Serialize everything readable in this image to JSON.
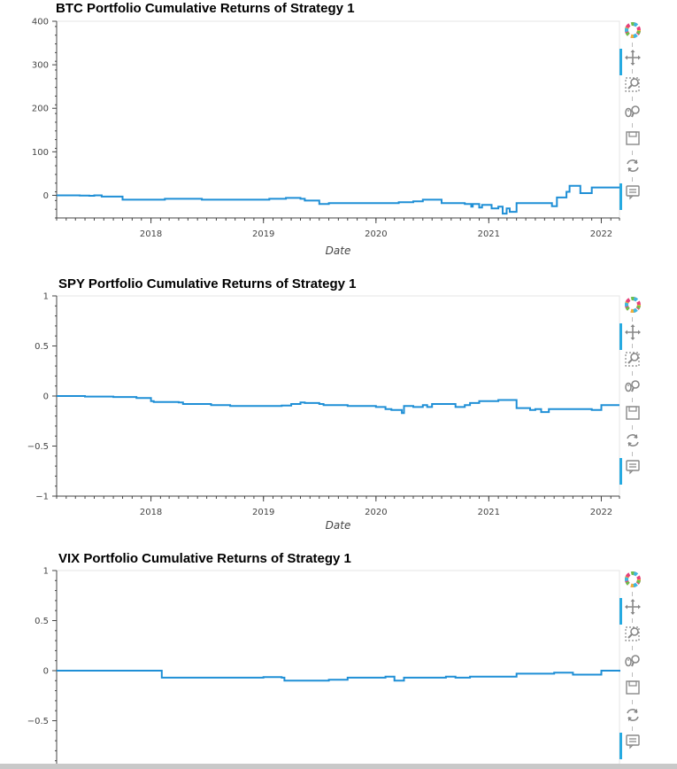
{
  "chart_data": [
    {
      "type": "line",
      "title": "BTC Portfolio Cumulative Returns of Strategy 1",
      "xlabel": "Date",
      "ylabel": "",
      "xlim": [
        "2017-03-01",
        "2022-03-01"
      ],
      "ylim": [
        -52,
        400
      ],
      "yticks": [
        0,
        100,
        200,
        300,
        400
      ],
      "ytick_labels": [
        "0",
        "100",
        "200",
        "300",
        "400"
      ],
      "xticks": [
        "2018-01-01",
        "2019-01-01",
        "2020-01-01",
        "2021-01-01",
        "2022-01-01"
      ],
      "xtick_labels": [
        "2018",
        "2019",
        "2020",
        "2021",
        "2022"
      ],
      "grid": false,
      "series": [
        {
          "color": "#1f8fd6",
          "points": [
            [
              "2017-03-01",
              0
            ],
            [
              "2017-05-15",
              -0.5
            ],
            [
              "2017-06-15",
              -1
            ],
            [
              "2017-07-01",
              0
            ],
            [
              "2017-07-25",
              -3
            ],
            [
              "2017-09-15",
              -3
            ],
            [
              "2017-10-01",
              -10
            ],
            [
              "2018-02-01",
              -10
            ],
            [
              "2018-02-15",
              -8
            ],
            [
              "2018-06-01",
              -8
            ],
            [
              "2018-06-15",
              -10
            ],
            [
              "2019-01-15",
              -10
            ],
            [
              "2019-01-20",
              -8
            ],
            [
              "2019-03-10",
              -8
            ],
            [
              "2019-03-15",
              -6
            ],
            [
              "2019-05-01",
              -8
            ],
            [
              "2019-05-15",
              -12
            ],
            [
              "2019-07-01",
              -20
            ],
            [
              "2019-08-01",
              -18
            ],
            [
              "2020-01-01",
              -18
            ],
            [
              "2020-03-15",
              -16
            ],
            [
              "2020-05-01",
              -14
            ],
            [
              "2020-06-01",
              -10
            ],
            [
              "2020-07-15",
              -10
            ],
            [
              "2020-08-01",
              -18
            ],
            [
              "2020-10-15",
              -20
            ],
            [
              "2020-11-05",
              -26
            ],
            [
              "2020-11-10",
              -20
            ],
            [
              "2020-12-01",
              -28
            ],
            [
              "2020-12-10",
              -22
            ],
            [
              "2021-01-10",
              -30
            ],
            [
              "2021-02-01",
              -26
            ],
            [
              "2021-02-15",
              -42
            ],
            [
              "2021-02-28",
              -30
            ],
            [
              "2021-03-10",
              -38
            ],
            [
              "2021-04-01",
              -18
            ],
            [
              "2021-07-20",
              -18
            ],
            [
              "2021-07-25",
              -25
            ],
            [
              "2021-08-10",
              -5
            ],
            [
              "2021-09-01",
              -5
            ],
            [
              "2021-09-10",
              8
            ],
            [
              "2021-09-20",
              22
            ],
            [
              "2021-10-20",
              22
            ],
            [
              "2021-10-25",
              5
            ],
            [
              "2021-11-15",
              5
            ],
            [
              "2021-12-01",
              18
            ],
            [
              "2022-03-01",
              18
            ]
          ]
        }
      ]
    },
    {
      "type": "line",
      "title": "SPY Portfolio Cumulative Returns of Strategy 1",
      "xlabel": "Date",
      "ylabel": "",
      "xlim": [
        "2017-03-01",
        "2022-03-01"
      ],
      "ylim": [
        -1,
        1
      ],
      "yticks": [
        -1,
        -0.5,
        0,
        0.5,
        1
      ],
      "ytick_labels": [
        "−1",
        "−0.5",
        "0",
        "0.5",
        "1"
      ],
      "xticks": [
        "2018-01-01",
        "2019-01-01",
        "2020-01-01",
        "2021-01-01",
        "2022-01-01"
      ],
      "xtick_labels": [
        "2018",
        "2019",
        "2020",
        "2021",
        "2022"
      ],
      "grid": false,
      "series": [
        {
          "color": "#1f8fd6",
          "points": [
            [
              "2017-03-01",
              0
            ],
            [
              "2017-06-01",
              -0.005
            ],
            [
              "2017-09-01",
              -0.01
            ],
            [
              "2017-11-15",
              -0.02
            ],
            [
              "2018-01-01",
              -0.05
            ],
            [
              "2018-01-10",
              -0.06
            ],
            [
              "2018-04-01",
              -0.065
            ],
            [
              "2018-04-15",
              -0.08
            ],
            [
              "2018-07-01",
              -0.08
            ],
            [
              "2018-07-15",
              -0.09
            ],
            [
              "2018-09-15",
              -0.1
            ],
            [
              "2019-02-15",
              -0.1
            ],
            [
              "2019-03-01",
              -0.095
            ],
            [
              "2019-04-01",
              -0.08
            ],
            [
              "2019-05-01",
              -0.065
            ],
            [
              "2019-05-15",
              -0.07
            ],
            [
              "2019-07-01",
              -0.08
            ],
            [
              "2019-07-15",
              -0.09
            ],
            [
              "2019-10-01",
              -0.1
            ],
            [
              "2019-12-01",
              -0.1
            ],
            [
              "2020-01-01",
              -0.11
            ],
            [
              "2020-02-01",
              -0.13
            ],
            [
              "2020-02-20",
              -0.14
            ],
            [
              "2020-03-20",
              -0.14
            ],
            [
              "2020-03-25",
              -0.17
            ],
            [
              "2020-04-01",
              -0.1
            ],
            [
              "2020-05-01",
              -0.11
            ],
            [
              "2020-06-01",
              -0.09
            ],
            [
              "2020-06-15",
              -0.11
            ],
            [
              "2020-07-01",
              -0.08
            ],
            [
              "2020-09-01",
              -0.08
            ],
            [
              "2020-09-15",
              -0.11
            ],
            [
              "2020-10-15",
              -0.09
            ],
            [
              "2020-11-01",
              -0.07
            ],
            [
              "2020-12-01",
              -0.05
            ],
            [
              "2021-01-01",
              -0.05
            ],
            [
              "2021-02-01",
              -0.04
            ],
            [
              "2021-03-15",
              -0.04
            ],
            [
              "2021-04-01",
              -0.12
            ],
            [
              "2021-05-15",
              -0.14
            ],
            [
              "2021-06-01",
              -0.13
            ],
            [
              "2021-06-20",
              -0.16
            ],
            [
              "2021-07-15",
              -0.13
            ],
            [
              "2021-09-01",
              -0.13
            ],
            [
              "2021-12-01",
              -0.14
            ],
            [
              "2022-01-01",
              -0.09
            ],
            [
              "2022-03-01",
              -0.09
            ]
          ]
        }
      ]
    },
    {
      "type": "line",
      "title": "VIX Portfolio Cumulative Returns of Strategy 1",
      "xlabel": "",
      "ylabel": "",
      "xlim": [
        "2017-03-01",
        "2022-03-01"
      ],
      "ylim": [
        -1,
        1
      ],
      "yticks": [
        -0.5,
        0,
        0.5,
        1
      ],
      "ytick_labels": [
        "−0.5",
        "0",
        "0.5",
        "1"
      ],
      "xticks": [],
      "xtick_labels": [],
      "grid": false,
      "series": [
        {
          "color": "#1f8fd6",
          "points": [
            [
              "2017-03-01",
              0
            ],
            [
              "2017-04-15",
              0
            ],
            [
              "2018-02-01",
              0
            ],
            [
              "2018-02-05",
              -0.07
            ],
            [
              "2019-01-01",
              -0.065
            ],
            [
              "2019-03-01",
              -0.07
            ],
            [
              "2019-03-10",
              -0.1
            ],
            [
              "2019-08-01",
              -0.09
            ],
            [
              "2019-10-01",
              -0.07
            ],
            [
              "2020-02-01",
              -0.06
            ],
            [
              "2020-03-01",
              -0.1
            ],
            [
              "2020-04-01",
              -0.07
            ],
            [
              "2020-08-01",
              -0.07
            ],
            [
              "2020-08-15",
              -0.06
            ],
            [
              "2020-09-15",
              -0.07
            ],
            [
              "2020-11-01",
              -0.06
            ],
            [
              "2021-01-01",
              -0.06
            ],
            [
              "2021-02-01",
              -0.06
            ],
            [
              "2021-04-01",
              -0.03
            ],
            [
              "2021-08-01",
              -0.02
            ],
            [
              "2021-10-01",
              -0.04
            ],
            [
              "2022-01-01",
              0
            ],
            [
              "2022-03-01",
              -0.01
            ]
          ]
        }
      ]
    }
  ],
  "toolbar": {
    "tools": [
      {
        "icon": "bokeh-logo-icon",
        "active": false
      },
      {
        "icon": "pan-icon",
        "active": true
      },
      {
        "icon": "box-zoom-icon",
        "active": false
      },
      {
        "icon": "wheel-zoom-icon",
        "active": false
      },
      {
        "icon": "save-icon",
        "active": false
      },
      {
        "icon": "reset-icon",
        "active": false
      },
      {
        "icon": "hover-icon",
        "active": true
      }
    ]
  },
  "colors": {
    "line": "#1f8fd6",
    "active_tool": "#26aae1",
    "axis": "#444444"
  }
}
